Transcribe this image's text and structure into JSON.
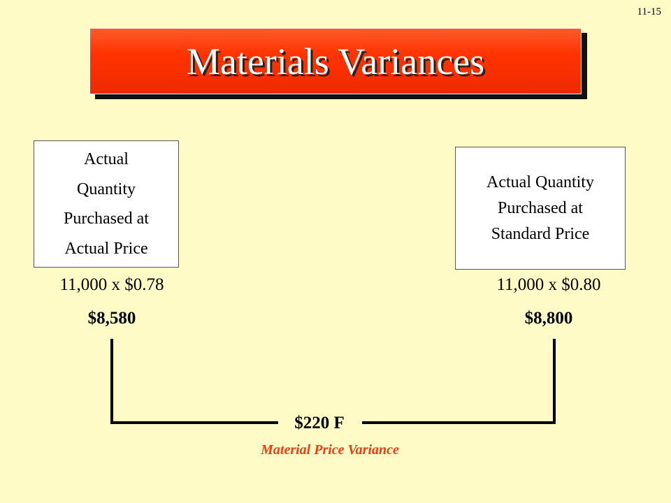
{
  "slide_number": "11-15",
  "title": "Materials Variances",
  "left": {
    "lines": [
      "Actual",
      "Quantity",
      "Purchased at",
      "Actual Price"
    ],
    "calculation": "11,000 x $0.78",
    "total": "$8,580"
  },
  "right": {
    "lines": [
      "Actual Quantity",
      "Purchased at",
      "Standard Price"
    ],
    "calculation": "11,000 x $0.80",
    "total": "$8,800"
  },
  "variance": {
    "amount": "$220 F",
    "label": "Material Price Variance"
  }
}
